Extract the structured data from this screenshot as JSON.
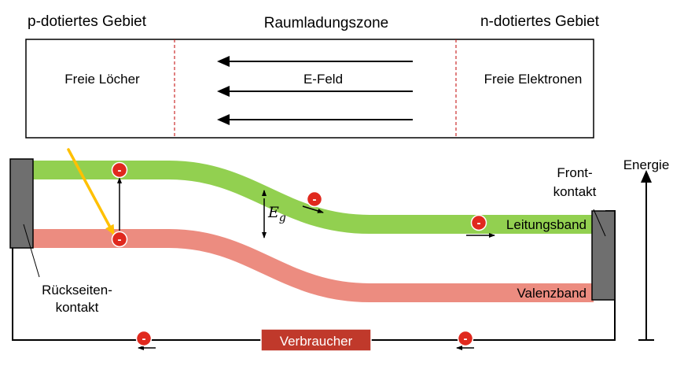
{
  "top": {
    "p_region_title": "p-dotiertes Gebiet",
    "depletion_title": "Raumladungszone",
    "n_region_title": "n-dotiertes Gebiet",
    "p_region_text": "Freie Löcher",
    "field_label": "E-Feld",
    "n_region_text": "Freie Elektronen"
  },
  "bands": {
    "conduction_label": "Leitungsband",
    "valence_label": "Valenzband",
    "gap_symbol": "E",
    "gap_subscript": "g",
    "conduction_color": "#92d050",
    "valence_color": "#ec8c80"
  },
  "contacts": {
    "front_line1": "Front-",
    "front_line2": "kontakt",
    "back_line1": "Rückseiten-",
    "back_line2": "kontakt"
  },
  "axis": {
    "energy_label": "Energie"
  },
  "circuit": {
    "load_label": "Verbraucher",
    "load_color": "#c0392b"
  },
  "electron": {
    "symbol": "-",
    "color": "#e0291e"
  },
  "light": {
    "color": "#ffc000"
  }
}
